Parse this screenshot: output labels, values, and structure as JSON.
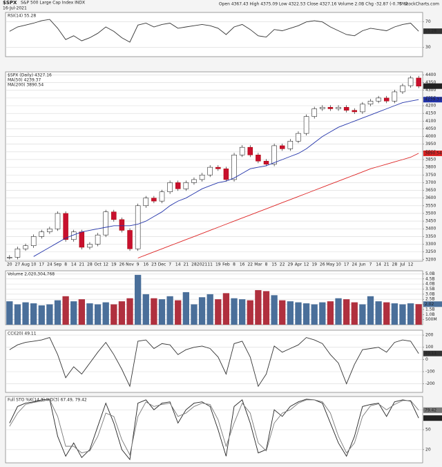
{
  "header": {
    "symbol": "$SPX",
    "name": "S&P 500 Large Cap Index INDX",
    "date": "16-Jul-2021",
    "quote": "Open 4367.43 High 4375.09 Low 4322.53 Close 4327.16 Volume 2.0B Chg -32.87 (-0.75%)",
    "credit": "© StockCharts.com"
  },
  "chart_data": [
    {
      "type": "line",
      "title": "RSI(14) 55.28",
      "ylim": [
        15,
        85
      ],
      "yticks": [
        30,
        70
      ],
      "grid": true,
      "series": [
        {
          "color": "#333333",
          "values": [
            55,
            62,
            65,
            68,
            72,
            74,
            60,
            42,
            48,
            40,
            45,
            52,
            62,
            55,
            45,
            38,
            65,
            68,
            62,
            66,
            68,
            60,
            62,
            64,
            66,
            64,
            60,
            50,
            62,
            66,
            58,
            48,
            46,
            58,
            56,
            60,
            64,
            70,
            72,
            70,
            62,
            56,
            50,
            48,
            56,
            60,
            58,
            56,
            62,
            66,
            68,
            55.28
          ]
        }
      ]
    },
    {
      "type": "candlestick",
      "title": "$SPX (Daily) 4327.16",
      "ylim": [
        3190,
        4420
      ],
      "yticks": [
        3200,
        3250,
        3300,
        3350,
        3400,
        3450,
        3500,
        3550,
        3600,
        3650,
        3700,
        3750,
        3800,
        3850,
        3900,
        3950,
        4000,
        4050,
        4100,
        4150,
        4200,
        4250,
        4300,
        4350,
        4400
      ],
      "grid": true,
      "categories": [
        "20",
        "27",
        "Aug",
        "10",
        "17",
        "24",
        "Sep",
        "8",
        "14",
        "21",
        "28",
        "Oct",
        "12",
        "19",
        "26",
        "Nov",
        "9",
        "16",
        "23",
        "Dec",
        "7",
        "14",
        "21",
        "28",
        "2021",
        "11",
        "19",
        "Feb",
        "8",
        "16",
        "22",
        "Mar",
        "8",
        "15",
        "22",
        "29",
        "Apr",
        "12",
        "19",
        "26",
        "May",
        "10",
        "17",
        "24",
        "Jun",
        "7",
        "14",
        "21",
        "28",
        "Jul",
        "12",
        null
      ],
      "series": [
        {
          "color": "#000000",
          "values": [
            3215,
            3270,
            3290,
            3350,
            3380,
            3400,
            3500,
            3330,
            3380,
            3280,
            3300,
            3360,
            3510,
            3460,
            3390,
            3270,
            3550,
            3600,
            3580,
            3640,
            3700,
            3660,
            3700,
            3720,
            3750,
            3800,
            3790,
            3720,
            3880,
            3930,
            3880,
            3840,
            3820,
            3940,
            3920,
            3970,
            4020,
            4130,
            4180,
            4190,
            4180,
            4190,
            4170,
            4160,
            4210,
            4230,
            4250,
            4230,
            4290,
            4330,
            4380,
            4327.16
          ]
        },
        {
          "name": "MA(50) 4239.37",
          "color": "#2233aa",
          "values": [
            null,
            null,
            null,
            3220,
            3250,
            3280,
            3310,
            3340,
            3360,
            3380,
            3390,
            3400,
            3410,
            3420,
            3420,
            3420,
            3430,
            3450,
            3480,
            3510,
            3550,
            3580,
            3600,
            3630,
            3660,
            3680,
            3700,
            3710,
            3730,
            3760,
            3790,
            3800,
            3810,
            3830,
            3850,
            3870,
            3890,
            3920,
            3960,
            4000,
            4030,
            4060,
            4080,
            4100,
            4120,
            4140,
            4160,
            4180,
            4200,
            4220,
            4230,
            4239.37
          ]
        },
        {
          "name": "MA(200) 3890.54",
          "color": "#dd2222",
          "values": [
            null,
            null,
            null,
            null,
            null,
            null,
            null,
            null,
            null,
            null,
            null,
            null,
            null,
            null,
            null,
            null,
            3210,
            3230,
            3250,
            3270,
            3290,
            3310,
            3330,
            3350,
            3370,
            3390,
            3410,
            3430,
            3450,
            3470,
            3490,
            3510,
            3530,
            3550,
            3570,
            3590,
            3610,
            3630,
            3650,
            3670,
            3690,
            3710,
            3730,
            3750,
            3770,
            3790,
            3805,
            3820,
            3835,
            3850,
            3865,
            3890.54
          ]
        }
      ]
    },
    {
      "type": "bar",
      "title": "Volume 2,020,304,768",
      "ylim": [
        0,
        5.3
      ],
      "yticks": [
        {
          "value": 0.5,
          "label": "500M"
        },
        {
          "value": 1,
          "label": "1.0B"
        },
        {
          "value": 1.5,
          "label": "1.5B"
        },
        {
          "value": 2,
          "label": "2.0B"
        },
        {
          "value": 2.5,
          "label": "2.5B"
        },
        {
          "value": 3,
          "label": "3.0B"
        },
        {
          "value": 3.5,
          "label": "3.5B"
        },
        {
          "value": 4,
          "label": "4.0B"
        },
        {
          "value": 4.5,
          "label": "4.5B"
        },
        {
          "value": 5,
          "label": "5.0B"
        }
      ],
      "grid": true,
      "series": [
        {
          "color": "#4a6f9a",
          "values": [
            2.3,
            2.0,
            2.2,
            2.1,
            1.9,
            2.0,
            2.4,
            2.8,
            2.3,
            2.5,
            2.1,
            2.0,
            2.2,
            2.0,
            2.3,
            2.6,
            4.9,
            3.0,
            2.6,
            2.5,
            2.8,
            2.4,
            3.2,
            2.0,
            2.7,
            3.0,
            2.5,
            3.1,
            2.6,
            2.5,
            2.4,
            3.4,
            3.3,
            2.9,
            2.4,
            2.3,
            2.2,
            2.1,
            2.0,
            2.2,
            2.3,
            2.6,
            2.5,
            2.2,
            2.0,
            2.8,
            2.3,
            2.2,
            2.1,
            2.0,
            2.1,
            2.02
          ]
        }
      ]
    },
    {
      "type": "line",
      "title": "CCI(20) 49.11",
      "ylim": [
        -270,
        240
      ],
      "yticks": [
        -200,
        -100,
        0,
        100,
        200
      ],
      "grid": true,
      "series": [
        {
          "color": "#333333",
          "values": [
            80,
            120,
            140,
            150,
            160,
            180,
            40,
            -150,
            -60,
            -120,
            -30,
            60,
            140,
            40,
            -80,
            -220,
            150,
            160,
            90,
            130,
            120,
            40,
            80,
            100,
            110,
            90,
            20,
            -120,
            130,
            150,
            20,
            -220,
            -120,
            110,
            60,
            90,
            120,
            180,
            160,
            130,
            40,
            -30,
            -200,
            -40,
            80,
            90,
            100,
            60,
            140,
            160,
            150,
            49.11
          ]
        }
      ]
    },
    {
      "type": "line",
      "title": "Full STO %K(14,3) %D(3) 67.49, 79.42",
      "ylim": [
        0,
        100
      ],
      "yticks": [
        20,
        50,
        80
      ],
      "grid": true,
      "series": [
        {
          "color": "#222222",
          "values": [
            60,
            85,
            90,
            92,
            95,
            96,
            40,
            10,
            30,
            8,
            20,
            55,
            90,
            60,
            20,
            5,
            90,
            95,
            80,
            90,
            92,
            60,
            80,
            90,
            92,
            85,
            50,
            10,
            85,
            95,
            60,
            15,
            20,
            80,
            70,
            85,
            92,
            96,
            95,
            90,
            60,
            30,
            10,
            40,
            85,
            88,
            90,
            70,
            92,
            95,
            93,
            67.49
          ]
        },
        {
          "color": "#777777",
          "values": [
            55,
            75,
            88,
            91,
            93,
            95,
            70,
            25,
            25,
            15,
            18,
            40,
            75,
            70,
            35,
            12,
            70,
            92,
            85,
            88,
            90,
            70,
            75,
            85,
            90,
            88,
            65,
            25,
            60,
            90,
            75,
            30,
            18,
            60,
            75,
            80,
            90,
            95,
            95,
            92,
            75,
            40,
            15,
            30,
            70,
            86,
            89,
            80,
            88,
            94,
            94,
            79.42
          ]
        }
      ]
    }
  ]
}
